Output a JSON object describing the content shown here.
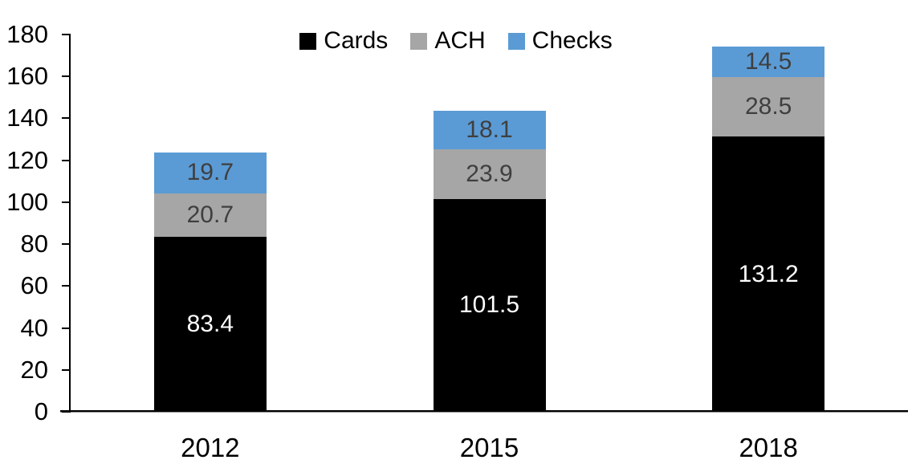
{
  "chart_data": {
    "type": "bar",
    "stacked": true,
    "title": "",
    "categories": [
      "2012",
      "2015",
      "2018"
    ],
    "series": [
      {
        "name": "Cards",
        "color": "#000000",
        "label_color": "#ffffff",
        "values": [
          83.4,
          101.5,
          131.2
        ]
      },
      {
        "name": "ACH",
        "color": "#a6a6a6",
        "label_color": "#3f3f3f",
        "values": [
          20.7,
          23.9,
          28.5
        ]
      },
      {
        "name": "Checks",
        "color": "#5b9bd5",
        "label_color": "#3f3f3f",
        "values": [
          19.7,
          18.1,
          14.5
        ]
      }
    ],
    "ylim": [
      0,
      180
    ],
    "yticks": [
      0,
      20,
      40,
      60,
      80,
      100,
      120,
      140,
      160,
      180
    ],
    "xlabel": "",
    "ylabel": "",
    "legend_position": "top",
    "grid": false,
    "axis_color": "#000000",
    "value_decimals": 1
  }
}
